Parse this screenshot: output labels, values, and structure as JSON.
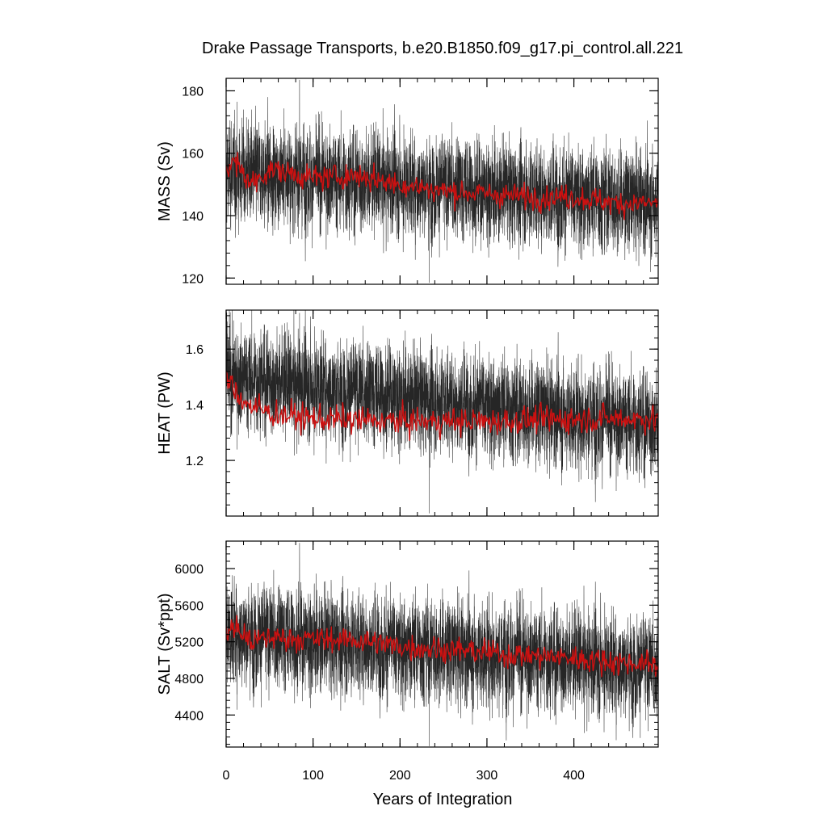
{
  "chart_data": {
    "title": "Drake Passage Transports, b.e20.B1850.f09_g17.pi_control.all.221",
    "xlabel": "Years of Integration",
    "xlim": [
      0,
      497
    ],
    "xticks": [
      0,
      100,
      200,
      300,
      400
    ],
    "xtick_labels": [
      "0",
      "100",
      "200",
      "300",
      "400"
    ],
    "line_colors": {
      "monthly": "#000000",
      "annual": "#cc1111"
    },
    "panels": [
      {
        "type": "line",
        "ylabel": "MASS (Sv)",
        "ylim": [
          118,
          184
        ],
        "yticks": [
          120,
          140,
          160,
          180
        ],
        "ytick_labels": [
          "120",
          "140",
          "160",
          "180"
        ],
        "series": [
          {
            "style": "monthly",
            "start": 154.0,
            "end": 144.5,
            "noise": 7.5,
            "min": 118.5,
            "max": 183.5
          },
          {
            "style": "annual",
            "start": 155.0,
            "end": 144.5,
            "noise": 2.0,
            "points": [
              [
                0,
                155
              ],
              [
                10,
                157
              ],
              [
                30,
                150
              ],
              [
                50,
                155
              ],
              [
                100,
                152
              ],
              [
                150,
                153
              ],
              [
                200,
                150
              ],
              [
                250,
                148
              ],
              [
                300,
                147
              ],
              [
                350,
                146
              ],
              [
                400,
                146
              ],
              [
                450,
                144
              ],
              [
                497,
                144
              ]
            ]
          }
        ]
      },
      {
        "type": "line",
        "ylabel": "HEAT (PW)",
        "ylim": [
          1.0,
          1.74
        ],
        "yticks": [
          1.2,
          1.4,
          1.6
        ],
        "ytick_labels": [
          "1.2",
          "1.4",
          "1.6"
        ],
        "series": [
          {
            "style": "monthly",
            "start": 1.5,
            "end": 1.33,
            "noise": 0.085,
            "min": 1.01,
            "max": 1.73
          },
          {
            "style": "annual",
            "start": 1.5,
            "end": 1.35,
            "noise": 0.025,
            "points": [
              [
                0,
                1.5
              ],
              [
                10,
                1.45
              ],
              [
                25,
                1.4
              ],
              [
                50,
                1.37
              ],
              [
                100,
                1.35
              ],
              [
                200,
                1.34
              ],
              [
                300,
                1.34
              ],
              [
                400,
                1.35
              ],
              [
                497,
                1.35
              ]
            ]
          }
        ]
      },
      {
        "type": "line",
        "ylabel": "SALT (Sv*ppt)",
        "ylim": [
          4050,
          6300
        ],
        "yticks": [
          4400,
          4800,
          5200,
          5600,
          6000
        ],
        "ytick_labels": [
          "4400",
          "4800",
          "5200",
          "5600",
          "6000"
        ],
        "series": [
          {
            "style": "monthly",
            "start": 5300,
            "end": 4920,
            "noise": 260,
            "min": 4060,
            "max": 6280
          },
          {
            "style": "annual",
            "start": 5320,
            "end": 4950,
            "noise": 70,
            "points": [
              [
                0,
                5330
              ],
              [
                10,
                5350
              ],
              [
                30,
                5200
              ],
              [
                50,
                5250
              ],
              [
                100,
                5230
              ],
              [
                150,
                5220
              ],
              [
                200,
                5150
              ],
              [
                250,
                5120
              ],
              [
                300,
                5080
              ],
              [
                350,
                5050
              ],
              [
                400,
                5020
              ],
              [
                450,
                4980
              ],
              [
                497,
                4950
              ]
            ]
          }
        ]
      }
    ]
  }
}
